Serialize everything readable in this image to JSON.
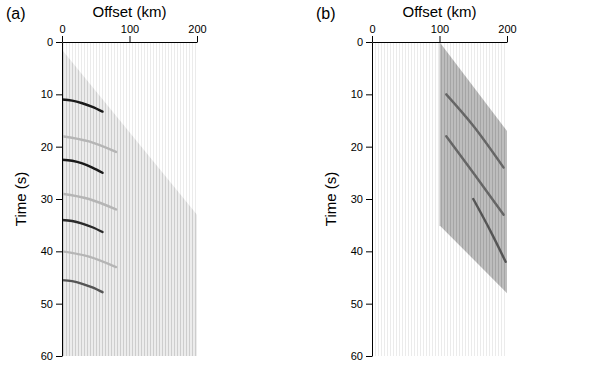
{
  "chart_data": [
    {
      "type": "line",
      "title": "(a)",
      "xlabel": "Offset (km)",
      "ylabel": "Time (s)",
      "xlim": [
        0,
        200
      ],
      "xticks": [
        0,
        100,
        200
      ],
      "ylim": [
        0,
        60
      ],
      "yticks": [
        0,
        10,
        20,
        30,
        40,
        50,
        60
      ],
      "series": [
        {
          "type": "area",
          "color": "#ececec",
          "x": [
            0,
            200
          ],
          "values": [
            1.5,
            33
          ],
          "base": [
            60,
            60
          ]
        },
        {
          "type": "line",
          "color": "#b5b5b5",
          "x": [
            0,
            40,
            80
          ],
          "values": [
            18,
            19,
            21
          ]
        },
        {
          "type": "line",
          "color": "#b5b5b5",
          "x": [
            0,
            40,
            80
          ],
          "values": [
            29,
            30,
            32
          ]
        },
        {
          "type": "line",
          "color": "#b5b5b5",
          "x": [
            0,
            40,
            80
          ],
          "values": [
            40,
            41,
            43
          ]
        },
        {
          "type": "line",
          "color": "#1a1a1a",
          "x": [
            0,
            15,
            30,
            45,
            60
          ],
          "values": [
            11,
            11.2,
            11.7,
            12.4,
            13.3
          ]
        },
        {
          "type": "line",
          "color": "#1a1a1a",
          "x": [
            0,
            15,
            30,
            45,
            60
          ],
          "values": [
            22.5,
            22.7,
            23.2,
            24,
            25
          ]
        },
        {
          "type": "line",
          "color": "#2a2a2a",
          "x": [
            0,
            15,
            30,
            45,
            60
          ],
          "values": [
            34,
            34.2,
            34.7,
            35.4,
            36.3
          ]
        },
        {
          "type": "line",
          "color": "#555555",
          "x": [
            0,
            15,
            30,
            45,
            60
          ],
          "values": [
            45.5,
            45.7,
            46.2,
            46.9,
            47.8
          ]
        }
      ]
    },
    {
      "type": "line",
      "title": "(b)",
      "xlabel": "Offset (km)",
      "ylabel": "Time (s)",
      "xlim": [
        0,
        200
      ],
      "xticks": [
        0,
        100,
        200
      ],
      "ylim": [
        0,
        60
      ],
      "yticks": [
        0,
        10,
        20,
        30,
        40,
        50,
        60
      ],
      "series": [
        {
          "type": "area",
          "color": "#bdbdbd",
          "x": [
            100,
            200
          ],
          "values": [
            0,
            17
          ],
          "base": [
            35,
            48
          ]
        },
        {
          "type": "line",
          "color": "#666666",
          "x": [
            110,
            150,
            195
          ],
          "values": [
            10,
            16,
            24
          ]
        },
        {
          "type": "line",
          "color": "#666666",
          "x": [
            110,
            150,
            195
          ],
          "values": [
            18,
            25,
            33
          ]
        },
        {
          "type": "line",
          "color": "#555555",
          "x": [
            150,
            175,
            198
          ],
          "values": [
            30,
            36,
            42
          ]
        }
      ]
    }
  ]
}
